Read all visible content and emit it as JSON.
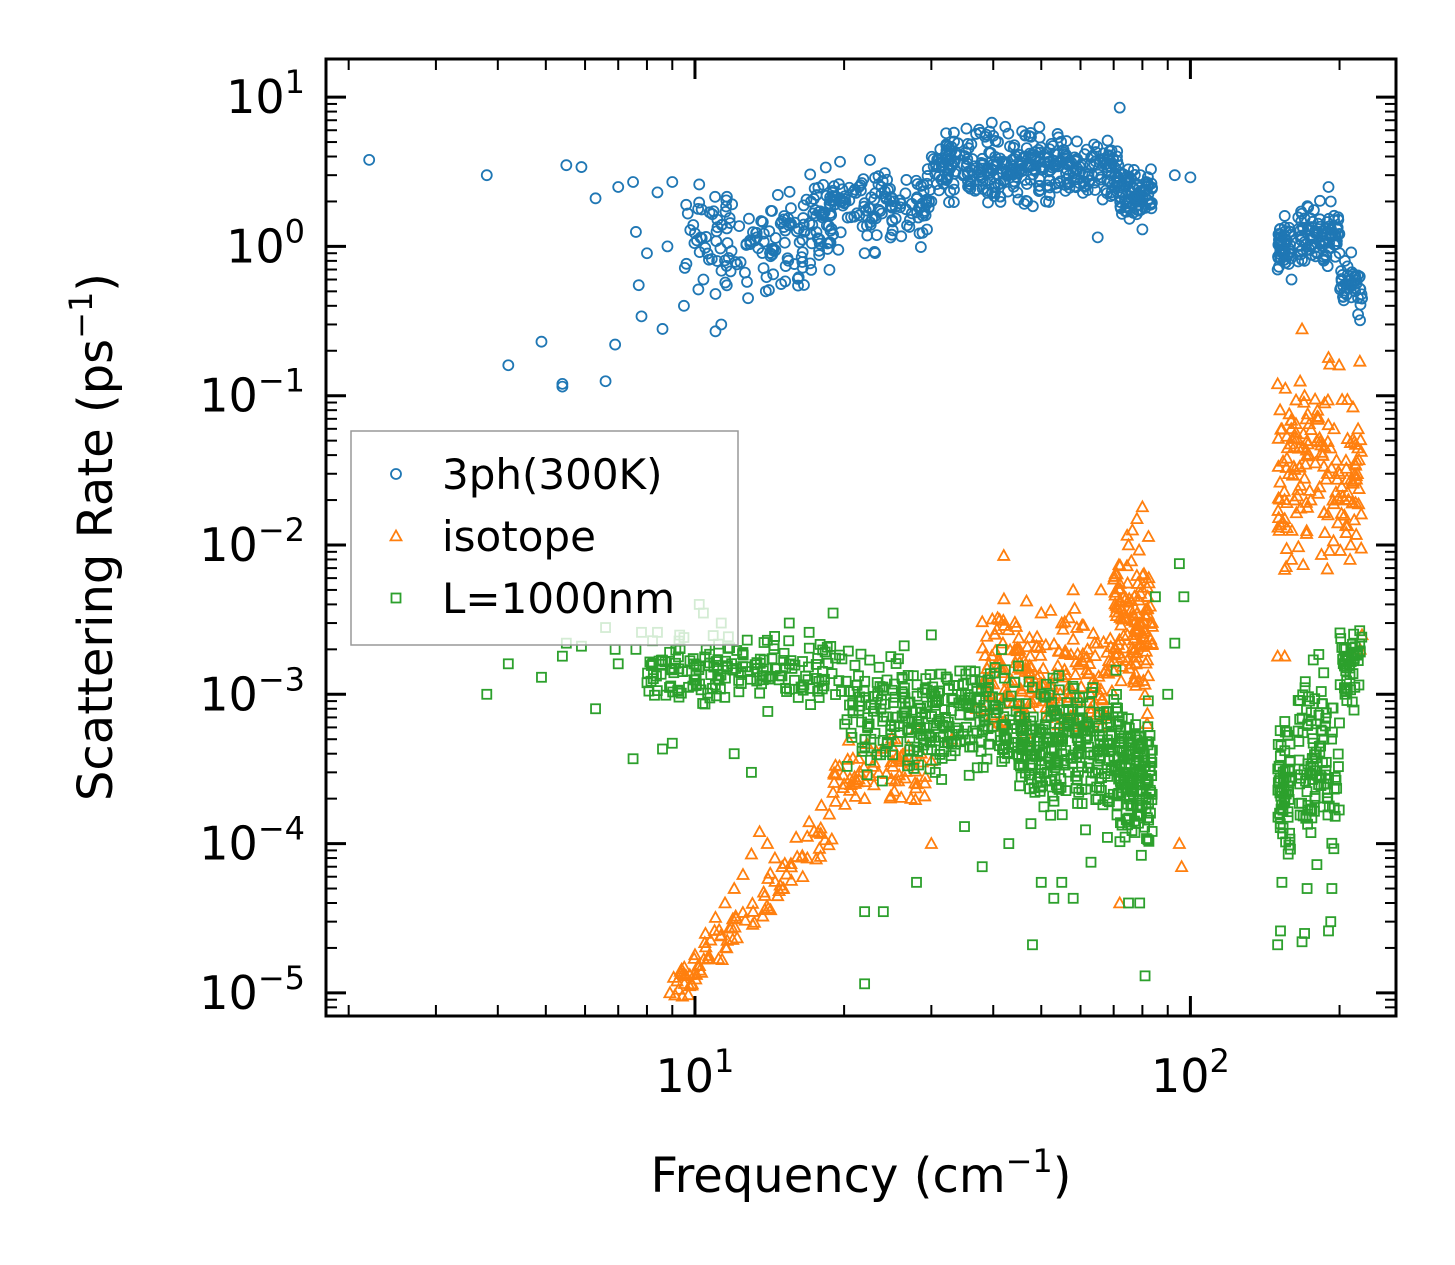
{
  "chart_data": {
    "type": "scatter",
    "title": "",
    "xlabel": {
      "text": "Frequency (cm",
      "sup": "−1",
      "close": ")"
    },
    "ylabel": {
      "text": "Scattering Rate (ps",
      "sup": "−1",
      "close": ")"
    },
    "xscale": "log",
    "yscale": "log",
    "xlim": [
      1.8,
      260
    ],
    "ylim": [
      7e-06,
      18
    ],
    "grid": false,
    "legend_position": "center-left",
    "x_ticks": [
      {
        "value": 10,
        "base": "10",
        "exp": "1"
      },
      {
        "value": 100,
        "base": "10",
        "exp": "2"
      }
    ],
    "y_ticks": [
      {
        "value": 10,
        "base": "10",
        "exp": "1"
      },
      {
        "value": 1,
        "base": "10",
        "exp": "0"
      },
      {
        "value": 0.1,
        "base": "10",
        "exp": "−1"
      },
      {
        "value": 0.01,
        "base": "10",
        "exp": "−2"
      },
      {
        "value": 0.001,
        "base": "10",
        "exp": "−3"
      },
      {
        "value": 0.0001,
        "base": "10",
        "exp": "−4"
      },
      {
        "value": 1e-05,
        "base": "10",
        "exp": "−5"
      }
    ],
    "series": [
      {
        "name": "3ph(300K)",
        "marker": "circle",
        "color": "#1f77b4",
        "points": [
          [
            2.2,
            3.8
          ],
          [
            3.8,
            3.0
          ],
          [
            4.2,
            0.16
          ],
          [
            4.9,
            0.23
          ],
          [
            5.4,
            0.12
          ],
          [
            5.4,
            0.115
          ],
          [
            5.5,
            3.5
          ],
          [
            5.9,
            3.4
          ],
          [
            6.3,
            2.1
          ],
          [
            6.6,
            0.125
          ],
          [
            6.9,
            0.22
          ],
          [
            7.0,
            2.5
          ],
          [
            7.5,
            2.7
          ],
          [
            7.6,
            1.25
          ],
          [
            7.7,
            0.55
          ],
          [
            7.8,
            0.34
          ],
          [
            8.0,
            0.9
          ],
          [
            8.4,
            2.3
          ],
          [
            8.6,
            0.28
          ],
          [
            8.8,
            1.0
          ],
          [
            9.0,
            2.7
          ],
          [
            9.5,
            0.4
          ],
          [
            9.6,
            1.9
          ],
          [
            10.2,
            2.6
          ],
          [
            10.4,
            0.6
          ],
          [
            11.0,
            0.48
          ],
          [
            11.0,
            0.27
          ],
          [
            11.3,
            0.3
          ],
          [
            11.8,
            0.68
          ],
          [
            12.8,
            0.45
          ],
          [
            13.9,
            0.5
          ],
          [
            14.1,
            0.51
          ],
          [
            16.5,
            0.72
          ],
          [
            19.0,
            1.2
          ],
          [
            22.0,
            0.9
          ],
          [
            25.0,
            1.5
          ],
          [
            30.0,
            2.0
          ],
          [
            40.0,
            5.5
          ],
          [
            43.0,
            3.0
          ],
          [
            52.0,
            2.2
          ],
          [
            58.0,
            3.2
          ],
          [
            65.0,
            1.15
          ],
          [
            72.0,
            8.5
          ],
          [
            80.0,
            1.3
          ],
          [
            93.0,
            3.0
          ],
          [
            100.0,
            2.9
          ],
          [
            150,
            0.7
          ],
          [
            152,
            1.2
          ],
          [
            155,
            1.6
          ],
          [
            158,
            0.9
          ],
          [
            160,
            0.6
          ],
          [
            165,
            1.3
          ],
          [
            170,
            0.8
          ],
          [
            175,
            1.0
          ],
          [
            180,
            0.9
          ],
          [
            185,
            1.2
          ],
          [
            190,
            2.5
          ],
          [
            192,
            2.0
          ],
          [
            195,
            1.5
          ],
          [
            200,
            0.9
          ],
          [
            205,
            0.8
          ],
          [
            210,
            0.6
          ],
          [
            215,
            0.5
          ],
          [
            218,
            0.35
          ],
          [
            220,
            0.32
          ],
          [
            222,
            0.45
          ]
        ],
        "clusters": [
          {
            "x_range": [
              9.5,
              19
            ],
            "y_range": [
              0.4,
              3.0
            ],
            "n": 140
          },
          {
            "x_range": [
              17,
              30
            ],
            "y_range": [
              0.8,
              4.5
            ],
            "n": 160
          },
          {
            "x_range": [
              30,
              55
            ],
            "y_range": [
              1.6,
              7.5
            ],
            "n": 260
          },
          {
            "x_range": [
              55,
              72
            ],
            "y_range": [
              1.6,
              6.0
            ],
            "n": 110
          },
          {
            "x_range": [
              72,
              84
            ],
            "y_range": [
              1.2,
              4.0
            ],
            "n": 80
          },
          {
            "x_range": [
              150,
              160
            ],
            "y_range": [
              0.6,
              1.7
            ],
            "n": 50
          },
          {
            "x_range": [
              165,
              200
            ],
            "y_range": [
              0.6,
              2.2
            ],
            "n": 90
          },
          {
            "x_range": [
              200,
              222
            ],
            "y_range": [
              0.3,
              1.0
            ],
            "n": 40
          }
        ]
      },
      {
        "name": "isotope",
        "marker": "triangle",
        "color": "#ff7f0e",
        "points": [
          [
            8.9,
            1e-05
          ],
          [
            9.2,
            1.2e-05
          ],
          [
            9.6,
            1.3e-05
          ],
          [
            10.0,
            1.8e-05
          ],
          [
            10.5,
            2.5e-05
          ],
          [
            11.0,
            3.2e-05
          ],
          [
            11.5,
            4e-05
          ],
          [
            12.0,
            5e-05
          ],
          [
            12.5,
            6.2e-05
          ],
          [
            13.0,
            8.5e-05
          ],
          [
            13.5,
            0.00012
          ],
          [
            14.0,
            0.0001
          ],
          [
            14.5,
            8e-05
          ],
          [
            15.0,
            7e-05
          ],
          [
            16.0,
            0.00011
          ],
          [
            16.5,
            6e-05
          ],
          [
            17.0,
            0.00014
          ],
          [
            18.0,
            0.00018
          ],
          [
            19.0,
            0.00022
          ],
          [
            20.0,
            0.00025
          ],
          [
            21.0,
            0.00028
          ],
          [
            22.0,
            0.0002
          ],
          [
            23.0,
            0.00035
          ],
          [
            25.0,
            0.00045
          ],
          [
            28.0,
            0.0006
          ],
          [
            30.0,
            0.0001
          ],
          [
            33.0,
            0.0005
          ],
          [
            37.0,
            0.0008
          ],
          [
            42.0,
            0.0085
          ],
          [
            45.0,
            0.0015
          ],
          [
            50.0,
            0.0035
          ],
          [
            55.0,
            0.003
          ],
          [
            58.0,
            0.005
          ],
          [
            62.0,
            0.002
          ],
          [
            66.0,
            0.005
          ],
          [
            72.0,
            4e-05
          ],
          [
            75.0,
            0.01
          ],
          [
            78.0,
            0.015
          ],
          [
            80.0,
            0.018
          ],
          [
            82.0,
            0.0045
          ],
          [
            95.0,
            0.0001
          ],
          [
            96.0,
            7e-05
          ],
          [
            150,
            0.12
          ],
          [
            153,
            0.06
          ],
          [
            155,
            0.015
          ],
          [
            158,
            0.03
          ],
          [
            160,
            0.008
          ],
          [
            162,
            0.02
          ],
          [
            168,
            0.28
          ],
          [
            170,
            0.1
          ],
          [
            172,
            0.05
          ],
          [
            175,
            0.02
          ],
          [
            180,
            0.05
          ],
          [
            185,
            0.04
          ],
          [
            190,
            0.18
          ],
          [
            195,
            0.06
          ],
          [
            200,
            0.03
          ],
          [
            205,
            0.02
          ],
          [
            210,
            0.008
          ],
          [
            215,
            0.035
          ],
          [
            218,
            0.06
          ],
          [
            220,
            0.002
          ],
          [
            222,
            0.0025
          ],
          [
            150,
            0.0018
          ],
          [
            155,
            0.0018
          ]
        ],
        "clusters": [
          {
            "x_range": [
              9,
              19
            ],
            "y_range": [
              1e-05,
              0.00013
            ],
            "n": 90,
            "trend": true
          },
          {
            "x_range": [
              19,
              30
            ],
            "y_range": [
              0.00015,
              0.0006
            ],
            "n": 70
          },
          {
            "x_range": [
              38,
              48
            ],
            "y_range": [
              0.0003,
              0.008
            ],
            "n": 90
          },
          {
            "x_range": [
              48,
              70
            ],
            "y_range": [
              0.0003,
              0.0055
            ],
            "n": 110
          },
          {
            "x_range": [
              70,
              84
            ],
            "y_range": [
              0.0005,
              0.018
            ],
            "n": 130
          },
          {
            "x_range": [
              150,
              222
            ],
            "y_range": [
              0.004,
              0.25
            ],
            "n": 160
          }
        ]
      },
      {
        "name": "L=1000nm",
        "marker": "square",
        "color": "#2ca02c",
        "points": [
          [
            3.8,
            0.001
          ],
          [
            4.2,
            0.0016
          ],
          [
            4.9,
            0.0013
          ],
          [
            5.4,
            0.0018
          ],
          [
            5.5,
            0.0022
          ],
          [
            5.9,
            0.0021
          ],
          [
            6.3,
            0.0008
          ],
          [
            6.6,
            0.0028
          ],
          [
            6.9,
            0.002
          ],
          [
            7.0,
            0.0016
          ],
          [
            7.5,
            0.00037
          ],
          [
            7.6,
            0.002
          ],
          [
            7.8,
            0.0026
          ],
          [
            8.4,
            0.0026
          ],
          [
            8.6,
            0.00043
          ],
          [
            9.0,
            0.00047
          ],
          [
            9.5,
            0.0024
          ],
          [
            10.2,
            0.004
          ],
          [
            10.4,
            0.0035
          ],
          [
            11.3,
            0.003
          ],
          [
            12.0,
            0.0004
          ],
          [
            13.0,
            0.0003
          ],
          [
            14.0,
            0.0023
          ],
          [
            15.5,
            0.003
          ],
          [
            17.0,
            0.0026
          ],
          [
            19.0,
            0.0035
          ],
          [
            22.0,
            3.5e-05
          ],
          [
            22.0,
            1.15e-05
          ],
          [
            24.0,
            3.5e-05
          ],
          [
            28.0,
            5.5e-05
          ],
          [
            30.0,
            0.0025
          ],
          [
            35.0,
            0.00013
          ],
          [
            38.0,
            7e-05
          ],
          [
            43.0,
            0.0001
          ],
          [
            48.0,
            2.1e-05
          ],
          [
            50.0,
            5.5e-05
          ],
          [
            53.0,
            4.3e-05
          ],
          [
            55.0,
            5.5e-05
          ],
          [
            58.0,
            4.3e-05
          ],
          [
            63.0,
            7.5e-05
          ],
          [
            68.0,
            0.00011
          ],
          [
            75.0,
            4e-05
          ],
          [
            79.0,
            4e-05
          ],
          [
            81.0,
            1.3e-05
          ],
          [
            85.0,
            0.0045
          ],
          [
            90.0,
            0.001
          ],
          [
            93.0,
            0.0022
          ],
          [
            95.0,
            0.0075
          ],
          [
            97.0,
            0.0045
          ],
          [
            150,
            2.1e-05
          ],
          [
            152,
            2.6e-05
          ],
          [
            153,
            5.5e-05
          ],
          [
            168,
            2.2e-05
          ],
          [
            170,
            2.5e-05
          ],
          [
            172,
            5e-05
          ],
          [
            190,
            2.6e-05
          ],
          [
            192,
            3e-05
          ],
          [
            193,
            5e-05
          ]
        ],
        "clusters": [
          {
            "x_range": [
              8,
              20
            ],
            "y_range": [
              0.0007,
              0.003
            ],
            "n": 180
          },
          {
            "x_range": [
              20,
              45
            ],
            "y_range": [
              0.0002,
              0.0025
            ],
            "n": 300
          },
          {
            "x_range": [
              45,
              72
            ],
            "y_range": [
              0.0001,
              0.002
            ],
            "n": 280
          },
          {
            "x_range": [
              72,
              84
            ],
            "y_range": [
              6e-05,
              0.0012
            ],
            "n": 150
          },
          {
            "x_range": [
              150,
              160
            ],
            "y_range": [
              5e-05,
              0.0012
            ],
            "n": 60
          },
          {
            "x_range": [
              165,
              200
            ],
            "y_range": [
              5e-05,
              0.0025
            ],
            "n": 110
          },
          {
            "x_range": [
              200,
              222
            ],
            "y_range": [
              0.0006,
              0.004
            ],
            "n": 50
          }
        ]
      }
    ]
  }
}
